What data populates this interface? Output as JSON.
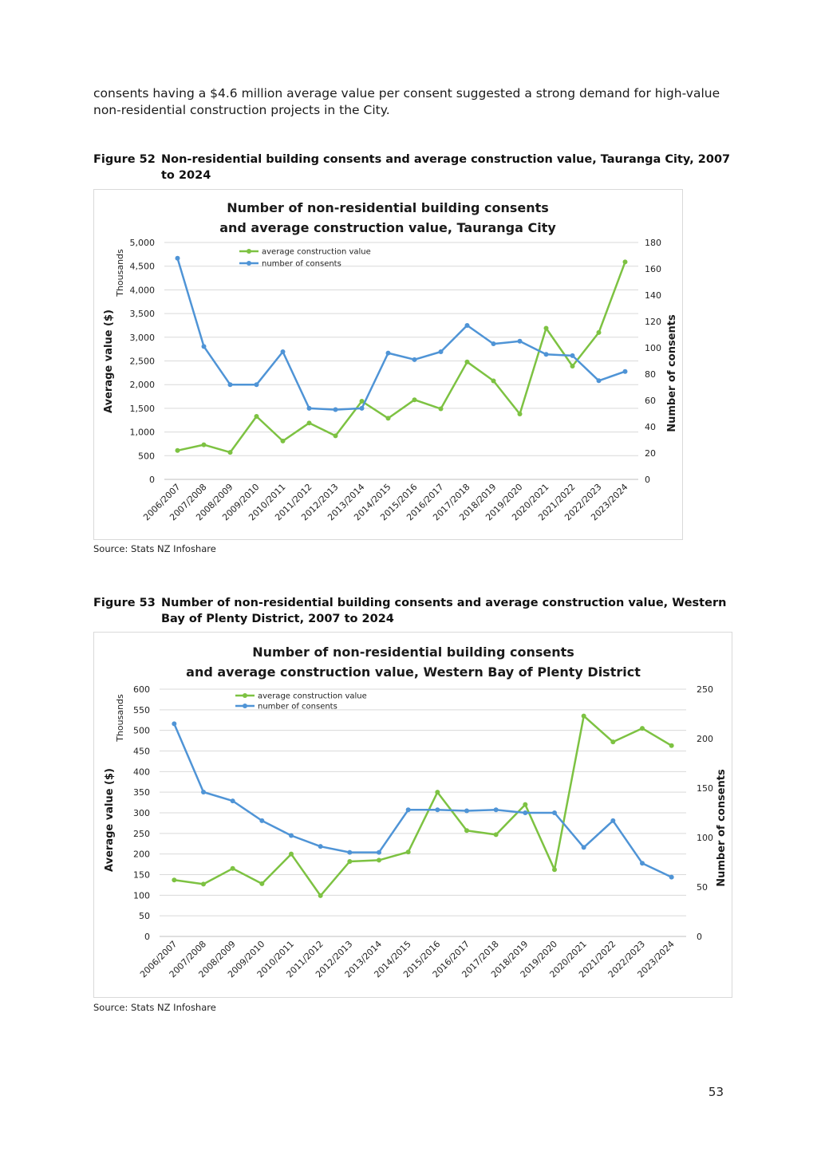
{
  "intro_text": "consents having a $4.6 million average value per consent suggested a strong demand for high-value non-residential construction projects in the City.",
  "page_number": "53",
  "figures": [
    {
      "number": "Figure 52",
      "caption": "Non-residential building consents and average construction value, Tauranga City, 2007 to 2024",
      "source": "Source: Stats NZ Infoshare"
    },
    {
      "number": "Figure 53",
      "caption": "Number of non-residential building consents and average construction value, Western Bay of Plenty District, 2007 to 2024",
      "source": "Source: Stats NZ Infoshare"
    }
  ],
  "colors": {
    "avg_value": "#7dc242",
    "consents": "#4f94d6",
    "grid": "#d9d9d9"
  },
  "chart_data": [
    {
      "type": "line",
      "title_lines": [
        "Number of non-residential building consents",
        "and average construction value, Tauranga City"
      ],
      "ylabel": "Average value ($)",
      "ylabel_units": "Thousands",
      "y2label": "Number of consents",
      "ylim": [
        0,
        5000
      ],
      "yticks": [
        0,
        500,
        1000,
        1500,
        2000,
        2500,
        3000,
        3500,
        4000,
        4500,
        5000
      ],
      "ytick_labels": [
        "0",
        "500",
        "1,000",
        "1,500",
        "2,000",
        "2,500",
        "3,000",
        "3,500",
        "4,000",
        "4,500",
        "5,000"
      ],
      "y2lim": [
        0,
        180
      ],
      "y2ticks": [
        0,
        20,
        40,
        60,
        80,
        100,
        120,
        140,
        160,
        180
      ],
      "categories": [
        "2006/2007",
        "2007/2008",
        "2008/2009",
        "2009/2010",
        "2010/2011",
        "2011/2012",
        "2012/2013",
        "2013/2014",
        "2014/2015",
        "2015/2016",
        "2016/2017",
        "2017/2018",
        "2018/2019",
        "2019/2020",
        "2020/2021",
        "2021/2022",
        "2022/2023",
        "2023/2024"
      ],
      "legend": "top-left",
      "grid": true,
      "series": [
        {
          "name": "average construction value",
          "axis": "left",
          "color": "#7dc242",
          "values": [
            610,
            730,
            570,
            1330,
            810,
            1190,
            920,
            1650,
            1290,
            1680,
            1490,
            2480,
            2080,
            1380,
            3190,
            2390,
            3100,
            4590
          ]
        },
        {
          "name": "number of consents",
          "axis": "right",
          "color": "#4f94d6",
          "values": [
            168,
            101,
            72,
            72,
            97,
            54,
            53,
            54,
            96,
            91,
            97,
            117,
            103,
            105,
            95,
            94,
            75,
            82
          ]
        }
      ]
    },
    {
      "type": "line",
      "title_lines": [
        "Number of non-residential building consents",
        "and average construction value, Western Bay of Plenty District"
      ],
      "ylabel": "Average value ($)",
      "ylabel_units": "Thousands",
      "y2label": "Number of consents",
      "ylim": [
        0,
        600
      ],
      "yticks": [
        0,
        50,
        100,
        150,
        200,
        250,
        300,
        350,
        400,
        450,
        500,
        550,
        600
      ],
      "ytick_labels": [
        "0",
        "50",
        "100",
        "150",
        "200",
        "250",
        "300",
        "350",
        "400",
        "450",
        "500",
        "550",
        "600"
      ],
      "y2lim": [
        0,
        250
      ],
      "y2ticks": [
        0,
        50,
        100,
        150,
        200,
        250
      ],
      "categories": [
        "2006/2007",
        "2007/2008",
        "2008/2009",
        "2009/2010",
        "2010/2011",
        "2011/2012",
        "2012/2013",
        "2013/2014",
        "2014/2015",
        "2015/2016",
        "2016/2017",
        "2017/2018",
        "2018/2019",
        "2019/2020",
        "2020/2021",
        "2021/2022",
        "2022/2023",
        "2023/2024"
      ],
      "legend": "top-left",
      "grid": true,
      "series": [
        {
          "name": "average construction value",
          "axis": "left",
          "color": "#7dc242",
          "values": [
            137,
            127,
            165,
            128,
            200,
            99,
            182,
            185,
            205,
            350,
            257,
            247,
            320,
            162,
            535,
            472,
            505,
            463
          ]
        },
        {
          "name": "number of consents",
          "axis": "right",
          "color": "#4f94d6",
          "values": [
            215,
            146,
            137,
            117,
            102,
            91,
            85,
            85,
            128,
            128,
            127,
            128,
            125,
            125,
            90,
            117,
            74,
            60
          ]
        }
      ]
    }
  ]
}
